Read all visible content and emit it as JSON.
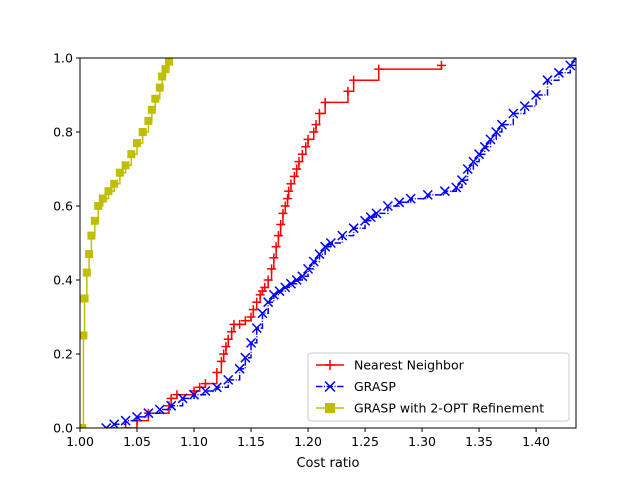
{
  "chart_data": {
    "type": "line",
    "title": "",
    "xlabel": "Cost ratio",
    "ylabel": "",
    "xlim": [
      1.0,
      1.435
    ],
    "ylim": [
      0.0,
      1.0
    ],
    "xticks": [
      "1.00",
      "1.05",
      "1.10",
      "1.15",
      "1.20",
      "1.25",
      "1.30",
      "1.35",
      "1.40"
    ],
    "xtick_values": [
      1.0,
      1.05,
      1.1,
      1.15,
      1.2,
      1.25,
      1.3,
      1.35,
      1.4
    ],
    "yticks": [
      "0.0",
      "0.2",
      "0.4",
      "0.6",
      "0.8",
      "1.0"
    ],
    "ytick_values": [
      0.0,
      0.2,
      0.4,
      0.6,
      0.8,
      1.0
    ],
    "grid": false,
    "legend_position": "lower-right",
    "series": [
      {
        "name": "Nearest Neighbor",
        "color": "#ff0000",
        "marker": "plus",
        "linestyle": "solid",
        "x": [
          1.04,
          1.05,
          1.06,
          1.078,
          1.08,
          1.085,
          1.1,
          1.105,
          1.11,
          1.12,
          1.124,
          1.126,
          1.128,
          1.13,
          1.133,
          1.135,
          1.14,
          1.145,
          1.15,
          1.152,
          1.155,
          1.158,
          1.16,
          1.162,
          1.165,
          1.168,
          1.17,
          1.172,
          1.174,
          1.176,
          1.178,
          1.18,
          1.182,
          1.183,
          1.185,
          1.188,
          1.19,
          1.192,
          1.195,
          1.198,
          1.2,
          1.205,
          1.207,
          1.21,
          1.215,
          1.235,
          1.24,
          1.262,
          1.317
        ],
        "y": [
          0.0,
          0.02,
          0.04,
          0.06,
          0.08,
          0.09,
          0.1,
          0.11,
          0.12,
          0.15,
          0.18,
          0.2,
          0.22,
          0.24,
          0.26,
          0.28,
          0.28,
          0.29,
          0.3,
          0.32,
          0.34,
          0.36,
          0.37,
          0.38,
          0.4,
          0.43,
          0.46,
          0.49,
          0.52,
          0.55,
          0.58,
          0.6,
          0.62,
          0.64,
          0.66,
          0.68,
          0.7,
          0.72,
          0.74,
          0.76,
          0.78,
          0.8,
          0.82,
          0.85,
          0.88,
          0.91,
          0.94,
          0.97,
          0.98
        ]
      },
      {
        "name": "GRASP",
        "color": "#0000ff",
        "marker": "x",
        "linestyle": "dashdot",
        "x": [
          1.023,
          1.03,
          1.04,
          1.05,
          1.06,
          1.07,
          1.08,
          1.09,
          1.1,
          1.11,
          1.12,
          1.13,
          1.14,
          1.145,
          1.15,
          1.155,
          1.16,
          1.165,
          1.17,
          1.175,
          1.18,
          1.185,
          1.19,
          1.195,
          1.2,
          1.205,
          1.21,
          1.215,
          1.22,
          1.23,
          1.24,
          1.25,
          1.255,
          1.26,
          1.27,
          1.28,
          1.29,
          1.305,
          1.32,
          1.33,
          1.335,
          1.34,
          1.345,
          1.35,
          1.355,
          1.36,
          1.365,
          1.37,
          1.38,
          1.39,
          1.4,
          1.41,
          1.42,
          1.43,
          1.435
        ],
        "y": [
          0.0,
          0.01,
          0.02,
          0.03,
          0.04,
          0.05,
          0.06,
          0.08,
          0.09,
          0.1,
          0.11,
          0.13,
          0.16,
          0.19,
          0.23,
          0.27,
          0.31,
          0.34,
          0.36,
          0.37,
          0.38,
          0.39,
          0.4,
          0.41,
          0.43,
          0.45,
          0.47,
          0.49,
          0.5,
          0.52,
          0.54,
          0.56,
          0.57,
          0.58,
          0.6,
          0.61,
          0.62,
          0.63,
          0.64,
          0.65,
          0.67,
          0.7,
          0.72,
          0.74,
          0.76,
          0.78,
          0.8,
          0.82,
          0.85,
          0.87,
          0.9,
          0.94,
          0.96,
          0.98,
          1.0
        ]
      },
      {
        "name": "GRASP with 2-OPT Refinement",
        "color": "#bfbf00",
        "marker": "square",
        "linestyle": "solid",
        "x": [
          1.002,
          1.003,
          1.004,
          1.006,
          1.008,
          1.01,
          1.013,
          1.016,
          1.02,
          1.025,
          1.03,
          1.035,
          1.04,
          1.045,
          1.05,
          1.055,
          1.06,
          1.063,
          1.066,
          1.07,
          1.072,
          1.075,
          1.078
        ],
        "y": [
          0.0,
          0.25,
          0.35,
          0.42,
          0.47,
          0.52,
          0.56,
          0.6,
          0.62,
          0.64,
          0.66,
          0.69,
          0.71,
          0.74,
          0.77,
          0.8,
          0.83,
          0.86,
          0.89,
          0.92,
          0.95,
          0.97,
          0.99
        ]
      }
    ]
  }
}
